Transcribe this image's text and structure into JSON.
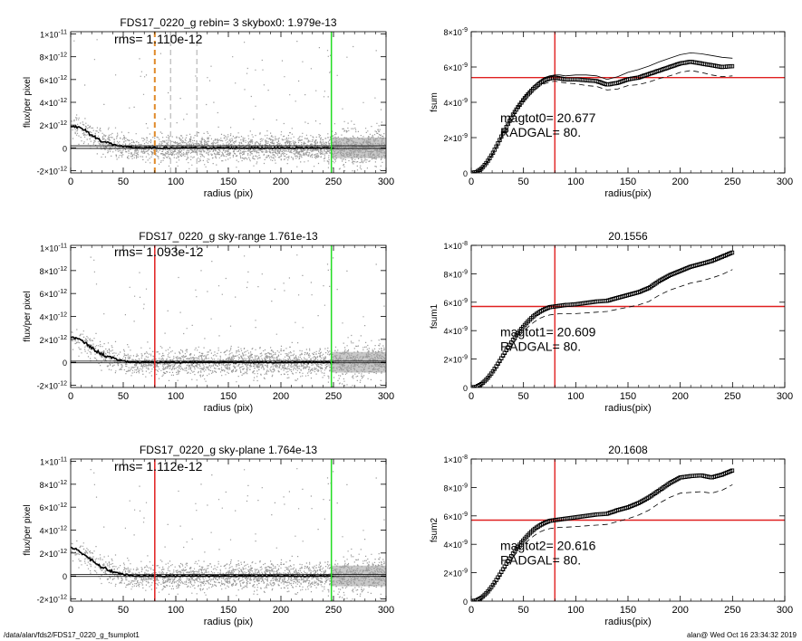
{
  "footer": {
    "path": "/data/alan/fds2/FDS17_0220_g_fsumplot1",
    "user_date": "alan@  Wed Oct 16 23:34:32 2019"
  },
  "colors": {
    "points": "#9a9a9a",
    "profile": "#000000",
    "red": "#e02020",
    "green": "#22dd22",
    "orange": "#e08a2a",
    "gray_dash": "#aaaaaa"
  },
  "chart_data": [
    {
      "type": "scatter",
      "title": "FDS17_0220_g rebin= 3    skybox0:  1.979e-13",
      "annotation": "rms= 1.110e-12",
      "xlabel": "radius (pix)",
      "ylabel": "flux/per pixel",
      "xlim": [
        0,
        300
      ],
      "ylim": [
        -2.2e-12,
        1.02e-11
      ],
      "xticks": [
        0,
        50,
        100,
        150,
        200,
        250,
        300
      ],
      "xticklabels": [
        "0",
        "50",
        "100",
        "150",
        "200",
        "250",
        "300"
      ],
      "yticks": [
        -2e-12,
        0,
        2e-12,
        4e-12,
        6e-12,
        8e-12,
        1e-11
      ],
      "yticklabels": [
        [
          "-2×10",
          "-12"
        ],
        [
          "0",
          ""
        ],
        [
          "2×10",
          "-12"
        ],
        [
          "4×10",
          "-12"
        ],
        [
          "6×10",
          "-12"
        ],
        [
          "8×10",
          "-12"
        ],
        [
          "1×10",
          "-11"
        ]
      ],
      "vlines": [
        {
          "x": 80,
          "color": "orange",
          "style": "dashed"
        },
        {
          "x": 95,
          "color": "gray_dash",
          "style": "dashed"
        },
        {
          "x": 120,
          "color": "gray_dash",
          "style": "dashed"
        },
        {
          "x": 248,
          "color": "green",
          "style": "solid"
        }
      ],
      "hlines": [
        1.8e-13,
        -5e-14
      ],
      "profile": {
        "x": [
          0,
          5,
          10,
          15,
          20,
          25,
          30,
          35,
          40,
          45,
          50,
          55,
          60,
          70,
          80,
          100,
          150,
          200,
          250
        ],
        "y": [
          2e-12,
          1.85e-12,
          1.7e-12,
          1.45e-12,
          1.1e-12,
          8.5e-13,
          6e-13,
          4.5e-13,
          3e-13,
          2e-13,
          1.2e-13,
          6e-14,
          2e-14,
          0,
          0,
          0,
          0,
          0,
          0
        ]
      }
    },
    {
      "type": "line",
      "title": "",
      "xlabel": "radius(pix)",
      "ylabel": "fsum",
      "annotation1": "magtot0=  20.677",
      "annotation2": "RADGAL=     80.",
      "xlim": [
        0,
        300
      ],
      "ylim": [
        0,
        8e-09
      ],
      "xticks": [
        0,
        50,
        100,
        150,
        200,
        250,
        300
      ],
      "xticklabels": [
        "0",
        "50",
        "100",
        "150",
        "200",
        "250",
        "300"
      ],
      "yticks": [
        0,
        2e-09,
        4e-09,
        6e-09,
        8e-09
      ],
      "yticklabels": [
        [
          "0",
          ""
        ],
        [
          "2×10",
          "-9"
        ],
        [
          "4×10",
          "-9"
        ],
        [
          "6×10",
          "-9"
        ],
        [
          "8×10",
          "-9"
        ]
      ],
      "vline": 80,
      "hline": 5.4e-09,
      "x": [
        0,
        5,
        10,
        15,
        20,
        25,
        30,
        35,
        40,
        45,
        50,
        55,
        60,
        65,
        70,
        75,
        80,
        85,
        90,
        100,
        110,
        120,
        130,
        140,
        150,
        160,
        170,
        180,
        190,
        200,
        210,
        220,
        230,
        240,
        250
      ],
      "series": [
        {
          "y": [
            0,
            5e-11,
            2.5e-10,
            6e-10,
            1.05e-09,
            1.6e-09,
            2.2e-09,
            2.75e-09,
            3.3e-09,
            3.75e-09,
            4.15e-09,
            4.5e-09,
            4.8e-09,
            5.05e-09,
            5.25e-09,
            5.35e-09,
            5.4e-09,
            5.35e-09,
            5.3e-09,
            5.3e-09,
            5.25e-09,
            5.2e-09,
            5e-09,
            5.1e-09,
            5.3e-09,
            5.4e-09,
            5.6e-09,
            5.8e-09,
            6e-09,
            6.2e-09,
            6.3e-09,
            6.2e-09,
            6.1e-09,
            6e-09,
            6.05e-09
          ],
          "style": "markers"
        },
        {
          "y": [
            0,
            5e-11,
            2.5e-10,
            6e-10,
            1.05e-09,
            1.6e-09,
            2.2e-09,
            2.8e-09,
            3.35e-09,
            3.85e-09,
            4.25e-09,
            4.6e-09,
            4.95e-09,
            5.2e-09,
            5.4e-09,
            5.5e-09,
            5.55e-09,
            5.55e-09,
            5.5e-09,
            5.55e-09,
            5.55e-09,
            5.5e-09,
            5.3e-09,
            5.45e-09,
            5.7e-09,
            5.85e-09,
            6.05e-09,
            6.3e-09,
            6.5e-09,
            6.7e-09,
            6.8e-09,
            6.75e-09,
            6.65e-09,
            6.55e-09,
            6.5e-09
          ],
          "style": "thin"
        },
        {
          "y": [
            0,
            5e-11,
            2e-10,
            5.5e-10,
            1e-09,
            1.55e-09,
            2.1e-09,
            2.65e-09,
            3.2e-09,
            3.65e-09,
            4.05e-09,
            4.35e-09,
            4.65e-09,
            4.9e-09,
            5.05e-09,
            5.15e-09,
            5.2e-09,
            5.15e-09,
            5.1e-09,
            5.05e-09,
            4.95e-09,
            4.9e-09,
            4.7e-09,
            4.75e-09,
            4.95e-09,
            5e-09,
            5.15e-09,
            5.35e-09,
            5.5e-09,
            5.7e-09,
            5.8e-09,
            5.7e-09,
            5.55e-09,
            5.45e-09,
            5.5e-09
          ],
          "style": "dashed"
        }
      ]
    },
    {
      "type": "scatter",
      "title": "FDS17_0220_g sky-range  1.761e-13",
      "annotation": "rms= 1.093e-12",
      "xlabel": "radius (pix)",
      "ylabel": "flux/per pixel",
      "xlim": [
        0,
        300
      ],
      "ylim": [
        -2.2e-12,
        1.02e-11
      ],
      "xticks": [
        0,
        50,
        100,
        150,
        200,
        250,
        300
      ],
      "xticklabels": [
        "0",
        "50",
        "100",
        "150",
        "200",
        "250",
        "300"
      ],
      "yticks": [
        -2e-12,
        0,
        2e-12,
        4e-12,
        6e-12,
        8e-12,
        1e-11
      ],
      "yticklabels": [
        [
          "-2×10",
          "-12"
        ],
        [
          "0",
          ""
        ],
        [
          "2×10",
          "-12"
        ],
        [
          "4×10",
          "-12"
        ],
        [
          "6×10",
          "-12"
        ],
        [
          "8×10",
          "-12"
        ],
        [
          "1×10",
          "-11"
        ]
      ],
      "vlines": [
        {
          "x": 80,
          "color": "red",
          "style": "solid"
        },
        {
          "x": 248,
          "color": "green",
          "style": "solid"
        }
      ],
      "hlines": [
        1e-13,
        -5e-14
      ],
      "profile": {
        "x": [
          0,
          5,
          10,
          15,
          20,
          25,
          30,
          35,
          40,
          45,
          50,
          55,
          60,
          70,
          80,
          100,
          150,
          200,
          250
        ],
        "y": [
          2.3e-12,
          2.1e-12,
          1.9e-12,
          1.6e-12,
          1.25e-12,
          9.5e-13,
          7e-13,
          5e-13,
          3.5e-13,
          2.2e-13,
          1.2e-13,
          6e-14,
          2e-14,
          0,
          0,
          0,
          0,
          0,
          0
        ]
      }
    },
    {
      "type": "line",
      "title": "20.1556",
      "xlabel": "radius(pix)",
      "ylabel": "fsum1",
      "annotation1": "magtot1=  20.609",
      "annotation2": "RADGAL=     80.",
      "xlim": [
        0,
        300
      ],
      "ylim": [
        0,
        1e-08
      ],
      "xticks": [
        0,
        50,
        100,
        150,
        200,
        250,
        300
      ],
      "xticklabels": [
        "0",
        "50",
        "100",
        "150",
        "200",
        "250",
        "300"
      ],
      "yticks": [
        0,
        2e-09,
        4e-09,
        6e-09,
        8e-09,
        1e-08
      ],
      "yticklabels": [
        [
          "0",
          ""
        ],
        [
          "2×10",
          "-9"
        ],
        [
          "4×10",
          "-9"
        ],
        [
          "6×10",
          "-9"
        ],
        [
          "8×10",
          "-9"
        ],
        [
          "1×10",
          "-8"
        ]
      ],
      "vline": 80,
      "hline": 5.7e-09,
      "x": [
        0,
        5,
        10,
        15,
        20,
        25,
        30,
        35,
        40,
        45,
        50,
        55,
        60,
        65,
        70,
        75,
        80,
        85,
        90,
        100,
        110,
        120,
        130,
        140,
        150,
        160,
        170,
        180,
        190,
        200,
        210,
        220,
        230,
        240,
        250
      ],
      "series": [
        {
          "y": [
            0,
            5e-11,
            2.5e-10,
            6e-10,
            1.05e-09,
            1.6e-09,
            2.2e-09,
            2.8e-09,
            3.35e-09,
            3.85e-09,
            4.3e-09,
            4.7e-09,
            5.05e-09,
            5.3e-09,
            5.5e-09,
            5.65e-09,
            5.7e-09,
            5.75e-09,
            5.8e-09,
            5.85e-09,
            5.95e-09,
            6.05e-09,
            6.1e-09,
            6.3e-09,
            6.5e-09,
            6.7e-09,
            7e-09,
            7.5e-09,
            7.9e-09,
            8.2e-09,
            8.5e-09,
            8.7e-09,
            8.9e-09,
            9.2e-09,
            9.5e-09
          ],
          "style": "markers"
        },
        {
          "y": [
            0,
            5e-11,
            2e-10,
            5.5e-10,
            1e-09,
            1.5e-09,
            2.05e-09,
            2.6e-09,
            3.1e-09,
            3.55e-09,
            3.95e-09,
            4.3e-09,
            4.6e-09,
            4.85e-09,
            5e-09,
            5.1e-09,
            5.15e-09,
            5.2e-09,
            5.2e-09,
            5.2e-09,
            5.25e-09,
            5.3e-09,
            5.35e-09,
            5.5e-09,
            5.65e-09,
            5.8e-09,
            6.05e-09,
            6.5e-09,
            6.85e-09,
            7.1e-09,
            7.35e-09,
            7.5e-09,
            7.7e-09,
            7.95e-09,
            8.3e-09
          ],
          "style": "dashed"
        }
      ]
    },
    {
      "type": "scatter",
      "title": "FDS17_0220_g sky-plane  1.764e-13",
      "annotation": "rms= 1.112e-12",
      "xlabel": "radius (pix)",
      "ylabel": "flux/per pixel",
      "xlim": [
        0,
        300
      ],
      "ylim": [
        -2.2e-12,
        1.02e-11
      ],
      "xticks": [
        0,
        50,
        100,
        150,
        200,
        250,
        300
      ],
      "xticklabels": [
        "0",
        "50",
        "100",
        "150",
        "200",
        "250",
        "300"
      ],
      "yticks": [
        -2e-12,
        0,
        2e-12,
        4e-12,
        6e-12,
        8e-12,
        1e-11
      ],
      "yticklabels": [
        [
          "-2×10",
          "-12"
        ],
        [
          "0",
          ""
        ],
        [
          "2×10",
          "-12"
        ],
        [
          "4×10",
          "-12"
        ],
        [
          "6×10",
          "-12"
        ],
        [
          "8×10",
          "-12"
        ],
        [
          "1×10",
          "-11"
        ]
      ],
      "vlines": [
        {
          "x": 80,
          "color": "red",
          "style": "solid"
        },
        {
          "x": 248,
          "color": "green",
          "style": "solid"
        }
      ],
      "hlines": [
        1.2e-13,
        -5e-14
      ],
      "profile": {
        "x": [
          0,
          5,
          10,
          15,
          20,
          25,
          30,
          35,
          40,
          45,
          50,
          55,
          60,
          70,
          80,
          100,
          150,
          200,
          250
        ],
        "y": [
          2.5e-12,
          2.3e-12,
          2.05e-12,
          1.75e-12,
          1.35e-12,
          1e-12,
          7.5e-13,
          5.5e-13,
          3.8e-13,
          2.5e-13,
          1.4e-13,
          7e-14,
          2e-14,
          0,
          0,
          0,
          0,
          0,
          0
        ]
      }
    },
    {
      "type": "line",
      "title": "20.1608",
      "xlabel": "radius(pix)",
      "ylabel": "fsum2",
      "annotation1": "magtot2=  20.616",
      "annotation2": "RADGAL=     80.",
      "xlim": [
        0,
        300
      ],
      "ylim": [
        0,
        1e-08
      ],
      "xticks": [
        0,
        50,
        100,
        150,
        200,
        250,
        300
      ],
      "xticklabels": [
        "0",
        "50",
        "100",
        "150",
        "200",
        "250",
        "300"
      ],
      "yticks": [
        0,
        2e-09,
        4e-09,
        6e-09,
        8e-09,
        1e-08
      ],
      "yticklabels": [
        [
          "0",
          ""
        ],
        [
          "2×10",
          "-9"
        ],
        [
          "4×10",
          "-9"
        ],
        [
          "6×10",
          "-9"
        ],
        [
          "8×10",
          "-9"
        ],
        [
          "1×10",
          "-8"
        ]
      ],
      "vline": 80,
      "hline": 5.7e-09,
      "x": [
        0,
        5,
        10,
        15,
        20,
        25,
        30,
        35,
        40,
        45,
        50,
        55,
        60,
        65,
        70,
        75,
        80,
        85,
        90,
        100,
        110,
        120,
        130,
        140,
        150,
        160,
        170,
        180,
        190,
        200,
        210,
        220,
        230,
        240,
        250
      ],
      "series": [
        {
          "y": [
            0,
            5e-11,
            2.5e-10,
            6e-10,
            1.05e-09,
            1.6e-09,
            2.2e-09,
            2.8e-09,
            3.35e-09,
            3.85e-09,
            4.3e-09,
            4.7e-09,
            5.05e-09,
            5.3e-09,
            5.5e-09,
            5.65e-09,
            5.7e-09,
            5.75e-09,
            5.8e-09,
            5.9e-09,
            6e-09,
            6.1e-09,
            6.15e-09,
            6.4e-09,
            6.6e-09,
            6.9e-09,
            7.3e-09,
            7.8e-09,
            8.3e-09,
            8.7e-09,
            8.8e-09,
            8.85e-09,
            8.7e-09,
            8.9e-09,
            9.2e-09
          ],
          "style": "markers"
        },
        {
          "y": [
            0,
            5e-11,
            2e-10,
            5.5e-10,
            1e-09,
            1.5e-09,
            2.05e-09,
            2.6e-09,
            3.1e-09,
            3.55e-09,
            3.95e-09,
            4.3e-09,
            4.6e-09,
            4.85e-09,
            5e-09,
            5.1e-09,
            5.15e-09,
            5.2e-09,
            5.2e-09,
            5.25e-09,
            5.3e-09,
            5.35e-09,
            5.4e-09,
            5.6e-09,
            5.8e-09,
            6.05e-09,
            6.4e-09,
            6.9e-09,
            7.3e-09,
            7.6e-09,
            7.65e-09,
            7.7e-09,
            7.6e-09,
            7.8e-09,
            8.2e-09
          ],
          "style": "dashed"
        }
      ]
    }
  ]
}
